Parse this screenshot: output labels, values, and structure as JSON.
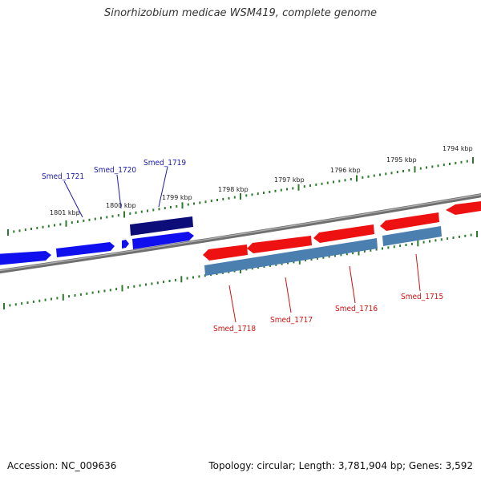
{
  "title": "Sinorhizobium medicae WSM419, complete genome",
  "footer": {
    "accession": "Accession: NC_009636",
    "summary": "Topology: circular; Length: 3,781,904 bp; Genes: 3,592"
  },
  "colors": {
    "backbone": "#8a8a8a",
    "tick": "#2f7a2f",
    "forward_gene": "#1010ee",
    "forward_cds_dark": "#0d0d7a",
    "reverse_gene": "#ee1111",
    "reverse_cds": "#4a7fb0",
    "forward_label": "#1a1aa8",
    "reverse_label": "#d01010"
  },
  "kbp_labels": [
    "1794 kbp",
    "1795 kbp",
    "1796 kbp",
    "1797 kbp",
    "1798 kbp",
    "1799 kbp",
    "1800 kbp",
    "1801 kbp"
  ],
  "gene_labels": {
    "forward": [
      "Smed_1721",
      "Smed_1720",
      "Smed_1719"
    ],
    "reverse": [
      "Smed_1718",
      "Smed_1717",
      "Smed_1716",
      "Smed_1715"
    ]
  }
}
